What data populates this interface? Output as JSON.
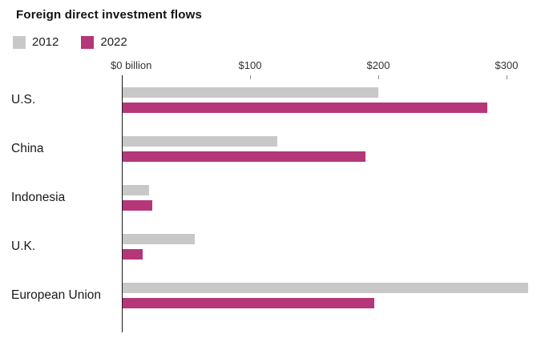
{
  "title": "Foreign direct investment flows",
  "chart_data": {
    "type": "bar",
    "orientation": "horizontal",
    "title": "Foreign direct investment flows",
    "categories": [
      "U.S.",
      "China",
      "Indonesia",
      "U.K.",
      "European Union"
    ],
    "series": [
      {
        "name": "2012",
        "color": "#c8c8c8",
        "values": [
          200,
          121,
          21,
          57,
          317
        ]
      },
      {
        "name": "2022",
        "color": "#b53779",
        "values": [
          285,
          190,
          24,
          16,
          197
        ]
      }
    ],
    "x_ticks": [
      {
        "label": "$0 billion",
        "value": 0
      },
      {
        "label": "$100",
        "value": 100
      },
      {
        "label": "$200",
        "value": 200
      },
      {
        "label": "$300",
        "value": 300
      }
    ],
    "xlim": [
      0,
      330
    ],
    "unit": "billion USD",
    "grid": false,
    "legend_position": "top-left",
    "axis_color": "#1a1a1a",
    "background": "#ffffff"
  }
}
